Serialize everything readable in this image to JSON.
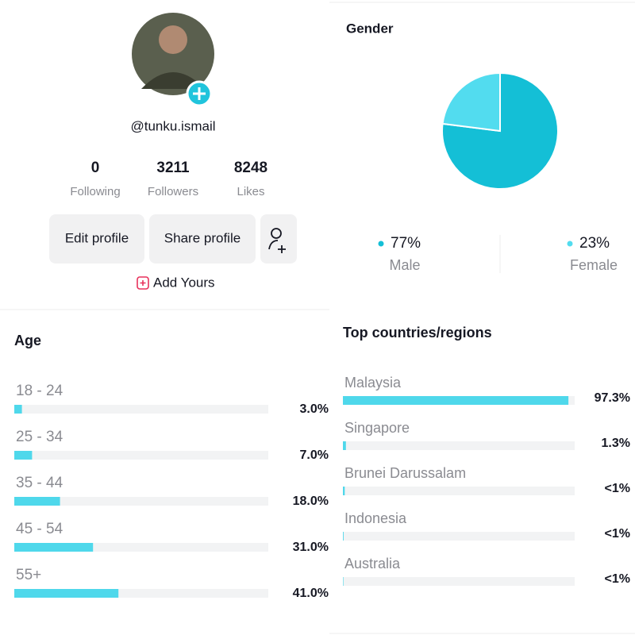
{
  "profile": {
    "handle": "@tunku.ismail",
    "stats": [
      {
        "value": "0",
        "label": "Following"
      },
      {
        "value": "3211",
        "label": "Followers"
      },
      {
        "value": "8248",
        "label": "Likes"
      }
    ],
    "buttons": [
      "Edit profile",
      "Share profile"
    ],
    "add_yours": "Add Yours"
  },
  "chart_data": [
    {
      "type": "pie",
      "title": "Gender",
      "categories": [
        "Male",
        "Female"
      ],
      "values": [
        77,
        23
      ],
      "value_labels": [
        "77%",
        "23%"
      ],
      "colors": [
        "#14bfd6",
        "#52dcef"
      ]
    },
    {
      "type": "hbar",
      "title": "Age",
      "categories": [
        "18 - 24",
        "25 - 34",
        "35 - 44",
        "45 - 54",
        "55+"
      ],
      "values": [
        3.0,
        7.0,
        18.0,
        31.0,
        41.0
      ],
      "value_labels": [
        "3.0%",
        "7.0%",
        "18.0%",
        "31.0%",
        "41.0%"
      ],
      "xlim": [
        0,
        100
      ],
      "color": "#4fd8eb"
    },
    {
      "type": "hbar",
      "title": "Top countries/regions",
      "categories": [
        "Malaysia",
        "Singapore",
        "Brunei Darussalam",
        "Indonesia",
        "Australia"
      ],
      "values": [
        97.3,
        1.3,
        0.8,
        0.3,
        0.2
      ],
      "value_labels": [
        "97.3%",
        "1.3%",
        "<1%",
        "<1%",
        "<1%"
      ],
      "xlim": [
        0,
        100
      ],
      "color": "#4fd8eb"
    }
  ]
}
